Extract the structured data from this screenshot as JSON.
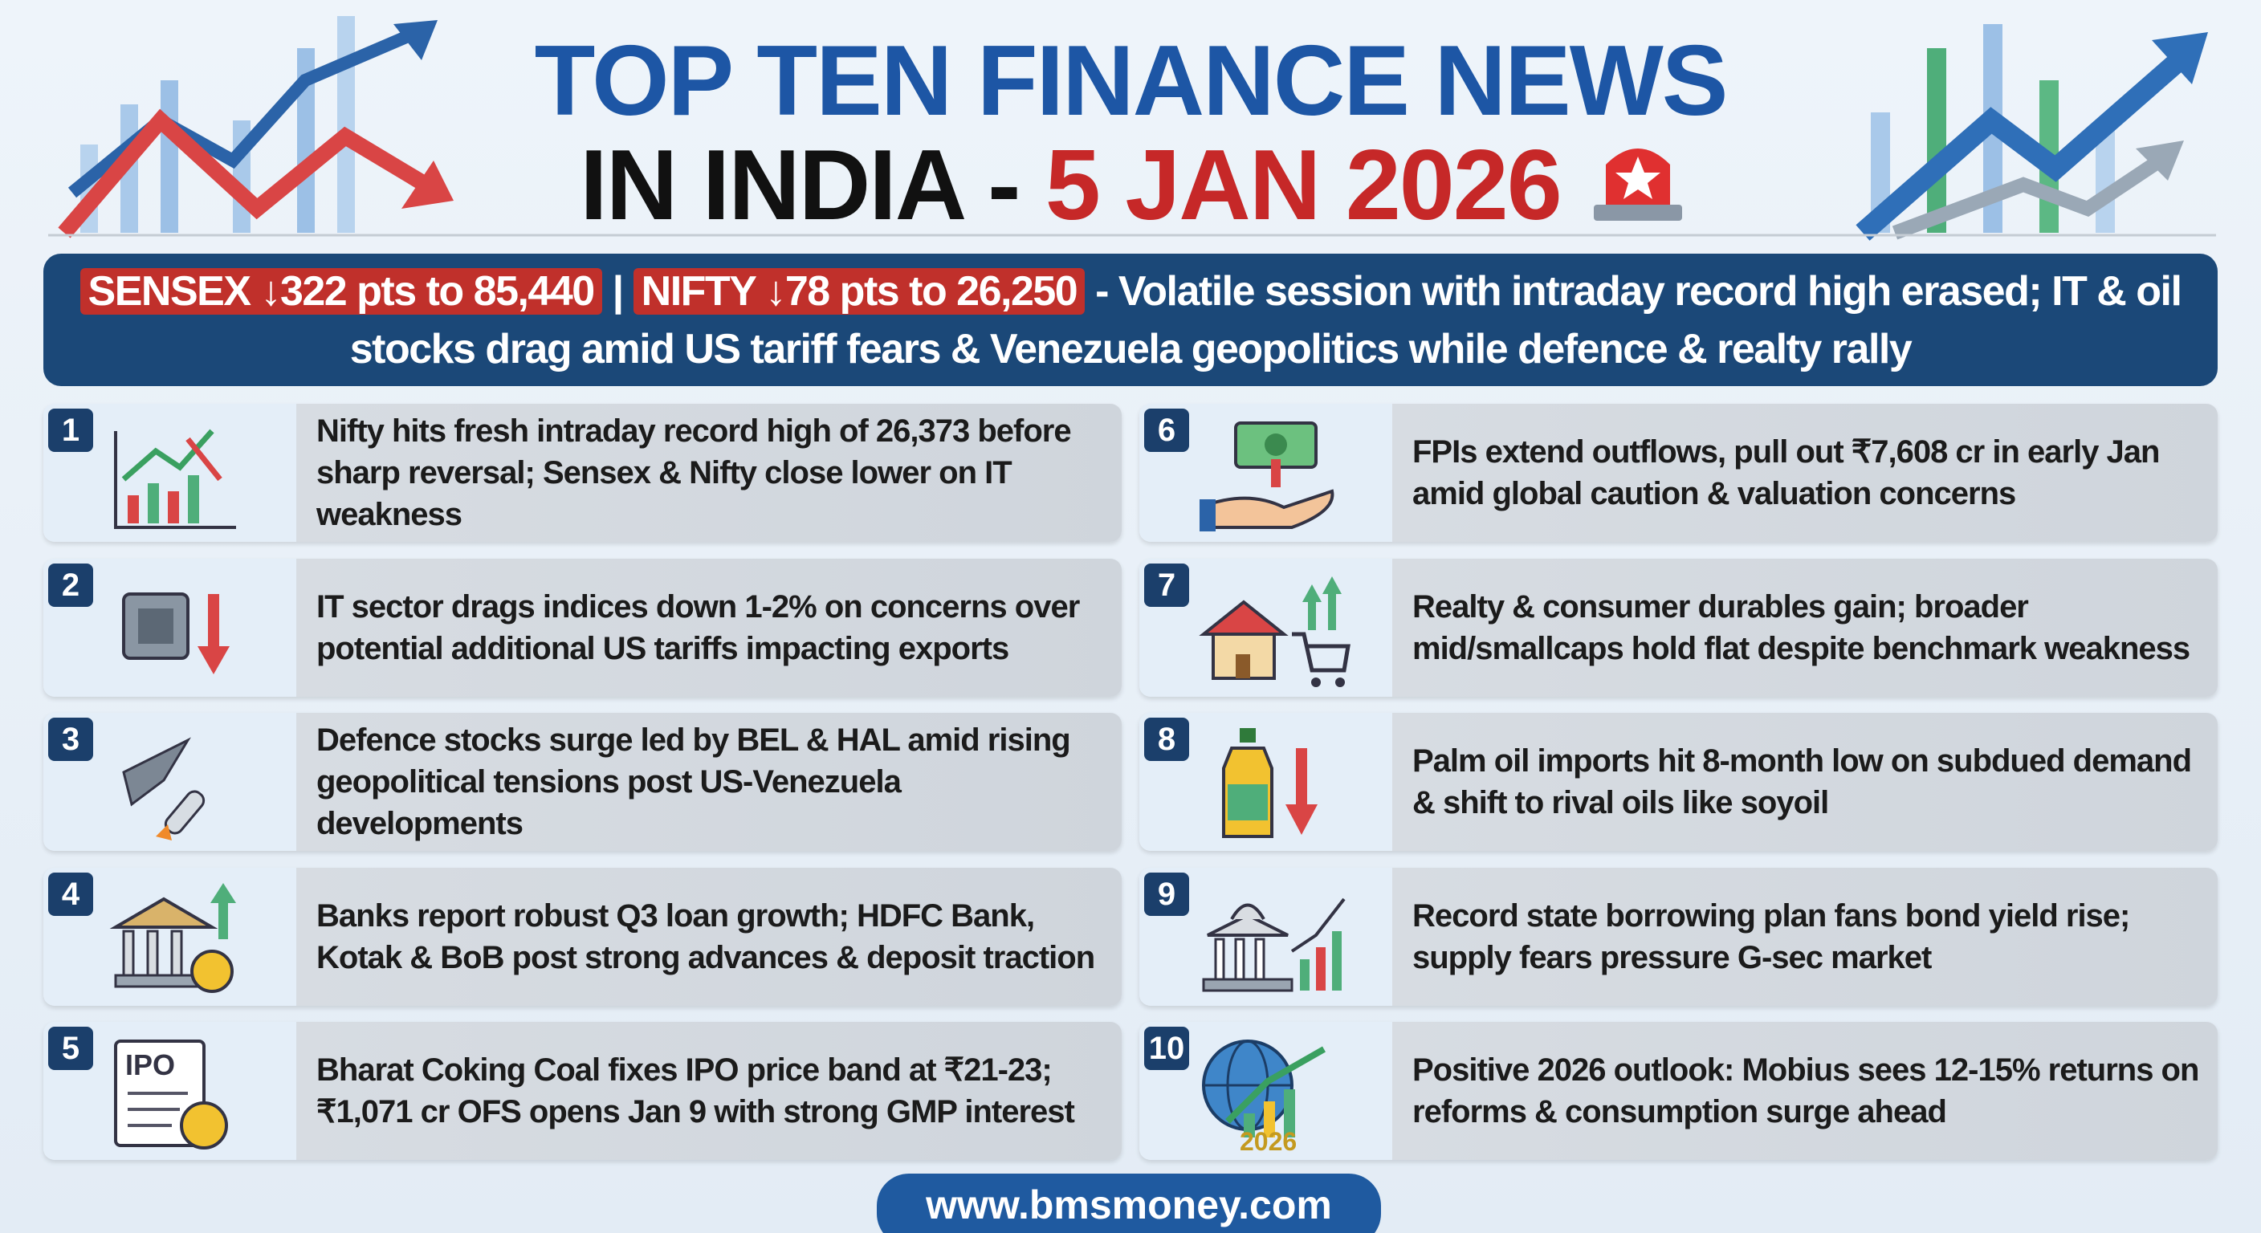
{
  "header": {
    "title_line1": "TOP TEN FINANCE NEWS",
    "title_line2_prefix": "IN INDIA -",
    "title_date": "5 JAN 2026"
  },
  "banner": {
    "sensex": "SENSEX ↓322 pts to 85,440",
    "separator": "|",
    "nifty": "NIFTY ↓78 pts to 26,250",
    "summary": "- Volatile session with intraday record high erased; IT & oil stocks drag amid US tariff fears & Venezuela geopolitics while defence & realty rally"
  },
  "items": [
    {
      "number": "1",
      "text": "Nifty hits fresh intraday record high of 26,373 before sharp reversal; Sensex & Nifty close lower on IT weakness"
    },
    {
      "number": "2",
      "text": "IT sector drags indices down 1-2% on concerns over potential additional US tariffs impacting exports"
    },
    {
      "number": "3",
      "text": "Defence stocks surge led by BEL & HAL amid rising geopolitical tensions post US-Venezuela developments"
    },
    {
      "number": "4",
      "text": "Banks report robust Q3 loan growth; HDFC Bank, Kotak & BoB post strong advances & deposit traction"
    },
    {
      "number": "5",
      "text": "Bharat Coking Coal fixes IPO price band at ₹21-23; ₹1,071 cr OFS opens Jan 9 with strong GMP interest",
      "icon_label": "IPO"
    },
    {
      "number": "6",
      "text": "FPIs extend outflows, pull out ₹7,608 cr in early Jan amid global caution & valuation concerns"
    },
    {
      "number": "7",
      "text": "Realty & consumer durables gain; broader mid/smallcaps hold flat despite benchmark weakness"
    },
    {
      "number": "8",
      "text": "Palm oil imports hit 8-month low on subdued demand & shift to rival oils like soyoil"
    },
    {
      "number": "9",
      "text": "Record state borrowing plan fans bond yield rise; supply fears pressure G-sec market"
    },
    {
      "number": "10",
      "text": "Positive 2026 outlook: Mobius sees 12-15% returns on reforms & consumption surge ahead",
      "icon_label": "2026"
    }
  ],
  "footer": {
    "url": "www.bmsmoney.com"
  }
}
